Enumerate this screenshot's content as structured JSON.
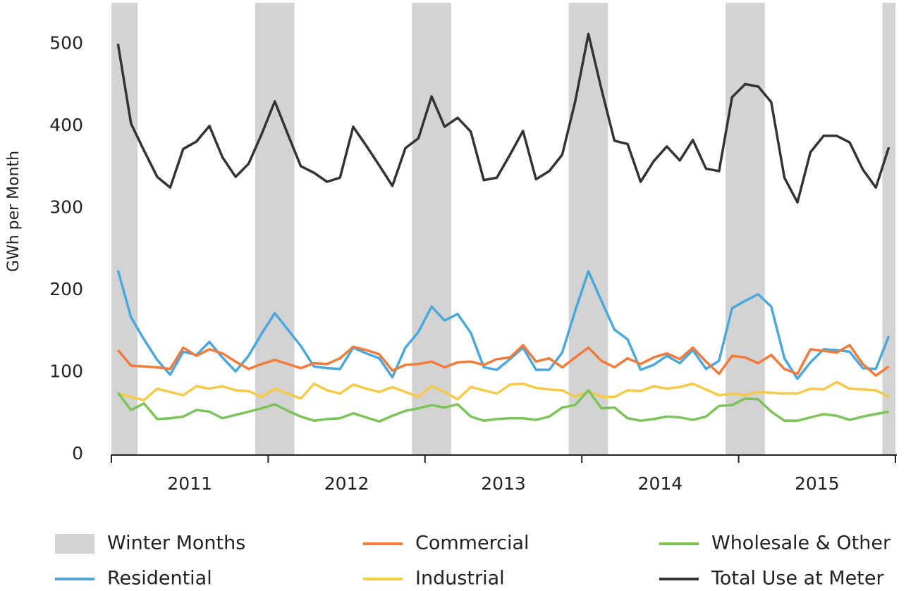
{
  "chart_data": {
    "type": "line",
    "ylabel": "GWh per Month",
    "xlim": [
      2011,
      2016
    ],
    "xticks": [
      {
        "value": 2011.5,
        "label": "2011"
      },
      {
        "value": 2012.5,
        "label": "2012"
      },
      {
        "value": 2013.5,
        "label": "2013"
      },
      {
        "value": 2014.5,
        "label": "2014"
      },
      {
        "value": 2015.5,
        "label": "2015"
      }
    ],
    "xtick_marks": [
      2011,
      2012,
      2013,
      2014,
      2015,
      2016
    ],
    "ylim": [
      0,
      550
    ],
    "yticks": [
      0,
      100,
      200,
      300,
      400,
      500
    ],
    "grid": false,
    "legend": "bottom",
    "shading": {
      "name": "Winter Months",
      "color": "#d3d3d3",
      "ranges": [
        [
          2011,
          2011.167
        ],
        [
          2011.917,
          2012.167
        ],
        [
          2012.917,
          2013.167
        ],
        [
          2013.917,
          2014.167
        ],
        [
          2014.917,
          2015.167
        ],
        [
          2015.917,
          2016
        ]
      ]
    },
    "x": [
      2011.042,
      2011.125,
      2011.208,
      2011.292,
      2011.375,
      2011.458,
      2011.542,
      2011.625,
      2011.708,
      2011.792,
      2011.875,
      2011.958,
      2012.042,
      2012.125,
      2012.208,
      2012.292,
      2012.375,
      2012.458,
      2012.542,
      2012.625,
      2012.708,
      2012.792,
      2012.875,
      2012.958,
      2013.042,
      2013.125,
      2013.208,
      2013.292,
      2013.375,
      2013.458,
      2013.542,
      2013.625,
      2013.708,
      2013.792,
      2013.875,
      2013.958,
      2014.042,
      2014.125,
      2014.208,
      2014.292,
      2014.375,
      2014.458,
      2014.542,
      2014.625,
      2014.708,
      2014.792,
      2014.875,
      2014.958,
      2015.042,
      2015.125,
      2015.208,
      2015.292,
      2015.375,
      2015.458,
      2015.542,
      2015.625,
      2015.708,
      2015.792,
      2015.875,
      2015.958
    ],
    "series": [
      {
        "name": "Residential",
        "color": "#4aa8dc",
        "values": [
          224,
          167,
          140,
          115,
          97,
          125,
          121,
          137,
          118,
          101,
          120,
          147,
          172,
          152,
          132,
          107,
          105,
          104,
          130,
          123,
          117,
          94,
          130,
          149,
          180,
          163,
          171,
          148,
          106,
          103,
          116,
          130,
          103,
          103,
          124,
          175,
          223,
          187,
          152,
          140,
          103,
          109,
          120,
          111,
          127,
          104,
          114,
          178,
          187,
          195,
          180,
          117,
          92,
          112,
          128,
          127,
          125,
          105,
          104,
          144
        ]
      },
      {
        "name": "Commercial",
        "color": "#f07b3a",
        "values": [
          127,
          108,
          107,
          106,
          104,
          130,
          120,
          128,
          123,
          113,
          104,
          110,
          115,
          110,
          105,
          111,
          110,
          117,
          131,
          127,
          122,
          102,
          109,
          110,
          113,
          106,
          112,
          113,
          109,
          116,
          118,
          133,
          113,
          117,
          106,
          118,
          130,
          114,
          106,
          117,
          110,
          118,
          123,
          116,
          130,
          113,
          98,
          120,
          118,
          111,
          121,
          104,
          98,
          128,
          126,
          124,
          133,
          110,
          96,
          107
        ]
      },
      {
        "name": "Industrial",
        "color": "#f7c948",
        "values": [
          74,
          70,
          66,
          80,
          76,
          72,
          83,
          80,
          83,
          78,
          77,
          70,
          80,
          74,
          68,
          86,
          78,
          74,
          85,
          80,
          76,
          82,
          76,
          70,
          83,
          76,
          67,
          82,
          78,
          74,
          85,
          86,
          81,
          79,
          78,
          70,
          77,
          70,
          70,
          78,
          77,
          83,
          80,
          82,
          86,
          79,
          72,
          74,
          72,
          76,
          75,
          74,
          74,
          80,
          79,
          88,
          80,
          79,
          78,
          70
        ]
      },
      {
        "name": "Wholesale & Other",
        "color": "#7cc35a",
        "values": [
          75,
          54,
          62,
          43,
          44,
          46,
          54,
          52,
          44,
          48,
          52,
          56,
          61,
          53,
          46,
          41,
          43,
          44,
          50,
          45,
          40,
          47,
          53,
          56,
          60,
          57,
          61,
          46,
          41,
          43,
          44,
          44,
          42,
          46,
          57,
          60,
          78,
          56,
          57,
          44,
          41,
          43,
          46,
          45,
          42,
          46,
          59,
          60,
          68,
          67,
          52,
          41,
          41,
          45,
          49,
          47,
          42,
          46,
          49,
          52
        ]
      },
      {
        "name": "Total Use at Meter",
        "color": "#333333",
        "values": [
          500,
          403,
          370,
          338,
          325,
          372,
          381,
          400,
          362,
          338,
          354,
          390,
          430,
          390,
          351,
          343,
          332,
          337,
          399,
          376,
          352,
          327,
          373,
          385,
          436,
          399,
          410,
          393,
          334,
          337,
          365,
          394,
          335,
          345,
          365,
          430,
          512,
          445,
          382,
          378,
          332,
          357,
          375,
          358,
          383,
          348,
          345,
          435,
          451,
          448,
          429,
          337,
          307,
          368,
          388,
          388,
          380,
          347,
          325,
          374
        ]
      }
    ]
  }
}
